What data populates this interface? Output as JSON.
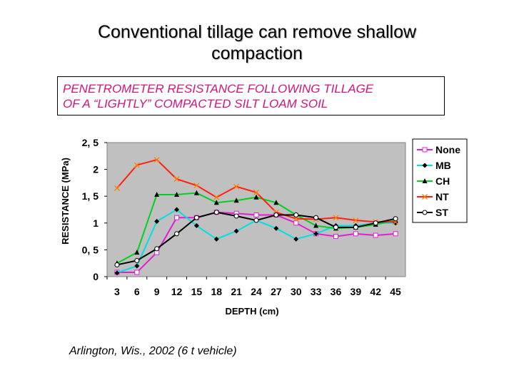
{
  "slide": {
    "title_line1": "Conventional tillage can remove shallow",
    "title_line2": "compaction",
    "subtitle_line1": "PENETROMETER RESISTANCE FOLLOWING TILLAGE",
    "subtitle_line2": "OF A “LIGHTLY” COMPACTED SILT LOAM SOIL",
    "caption": "Arlington, Wis., 2002 (6 t vehicle)"
  },
  "chart_data": {
    "type": "line",
    "title": "",
    "xlabel": "DEPTH (cm)",
    "ylabel": "RESISTANCE (MPa)",
    "x": [
      3,
      6,
      9,
      12,
      15,
      18,
      21,
      24,
      27,
      30,
      33,
      36,
      39,
      42,
      45
    ],
    "ylim": [
      0,
      2.5
    ],
    "yticks": [
      0,
      0.5,
      1,
      1.5,
      2,
      2.5
    ],
    "ytick_labels": [
      "0",
      "0, 5",
      "1",
      "1, 5",
      "2",
      "2, 5"
    ],
    "plot_background": "#c0c0c0",
    "legend_position": "right",
    "series": [
      {
        "name": "None",
        "color": "#e020d0",
        "marker": "square",
        "values": [
          0.08,
          0.08,
          0.45,
          1.1,
          1.1,
          1.2,
          1.18,
          1.15,
          1.15,
          1.0,
          0.8,
          0.75,
          0.8,
          0.77,
          0.8
        ]
      },
      {
        "name": "MB",
        "color": "#000000",
        "marker": "diamond",
        "values": [
          0.07,
          0.2,
          1.03,
          1.25,
          0.95,
          0.7,
          0.85,
          1.05,
          0.9,
          0.7,
          0.8,
          0.95,
          0.95,
          1.0,
          1.0
        ]
      },
      {
        "name": "CH",
        "color": "#00d020",
        "marker": "triangle",
        "values": [
          0.25,
          0.45,
          1.53,
          1.53,
          1.56,
          1.38,
          1.42,
          1.48,
          1.38,
          1.15,
          0.95,
          0.9,
          0.92,
          0.97,
          1.05
        ]
      },
      {
        "name": "NT",
        "color": "#ff2010",
        "marker": "x",
        "values": [
          1.65,
          2.08,
          2.18,
          1.82,
          1.7,
          1.48,
          1.68,
          1.57,
          1.2,
          1.08,
          1.07,
          1.1,
          1.05,
          1.02,
          1.02
        ]
      },
      {
        "name": "ST",
        "color": "#000000",
        "marker": "circle",
        "values": [
          0.22,
          0.3,
          0.52,
          0.8,
          1.1,
          1.2,
          1.13,
          1.05,
          1.15,
          1.15,
          1.1,
          0.92,
          0.92,
          1.0,
          1.08
        ]
      }
    ],
    "series_line_colors": [
      "#e020d0",
      "#00e0e0",
      "#00d020",
      "#ff2010",
      "#000000"
    ]
  }
}
